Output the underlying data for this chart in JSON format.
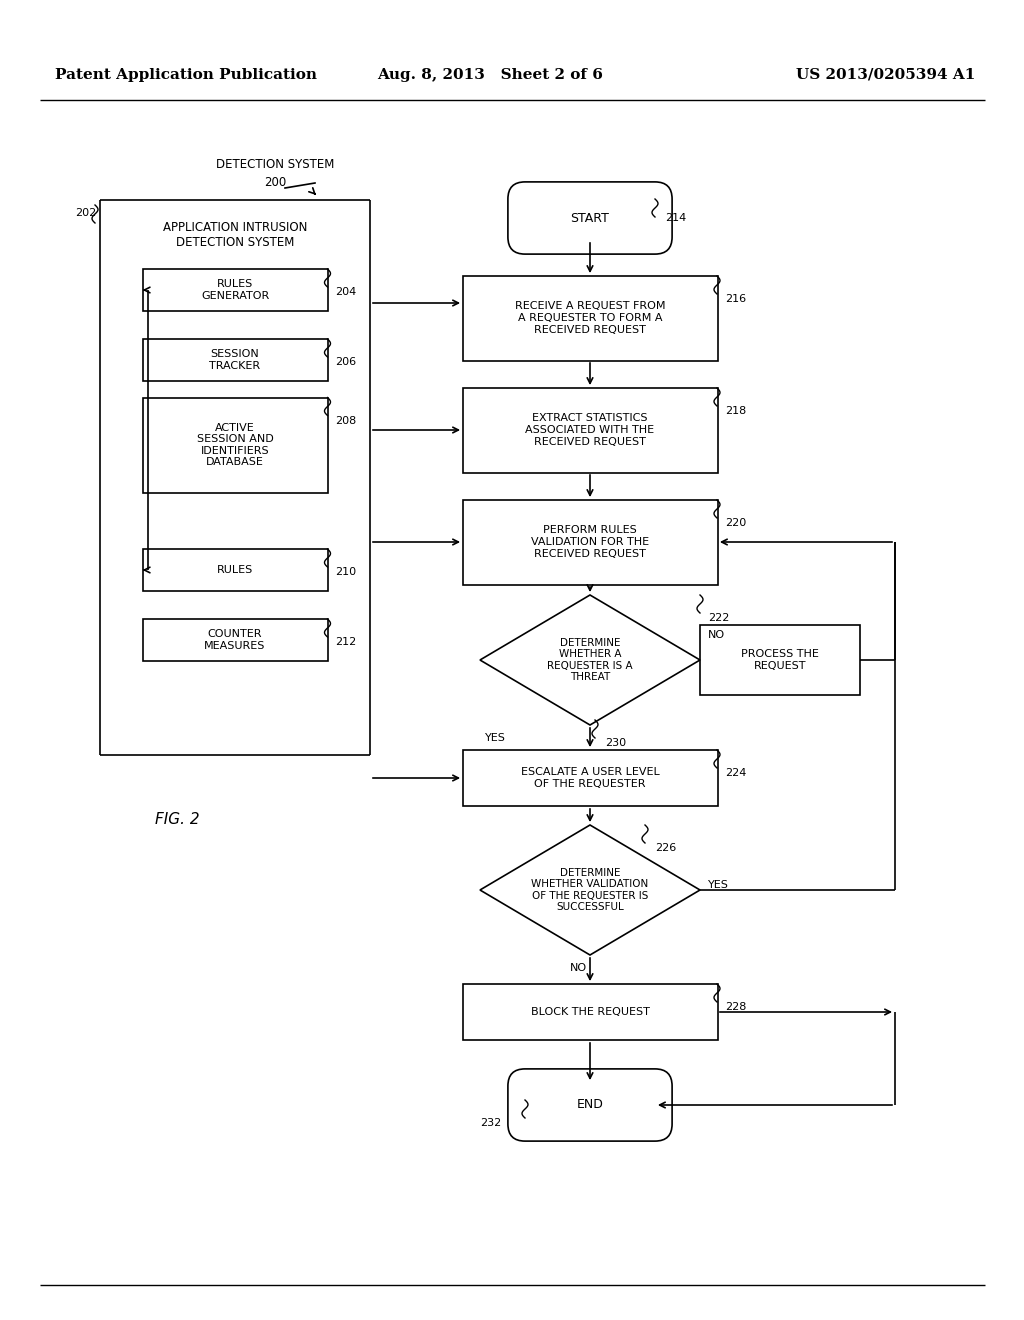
{
  "bg_color": "#ffffff",
  "header_left": "Patent Application Publication",
  "header_middle": "Aug. 8, 2013   Sheet 2 of 6",
  "header_right": "US 2013/0205394 A1"
}
